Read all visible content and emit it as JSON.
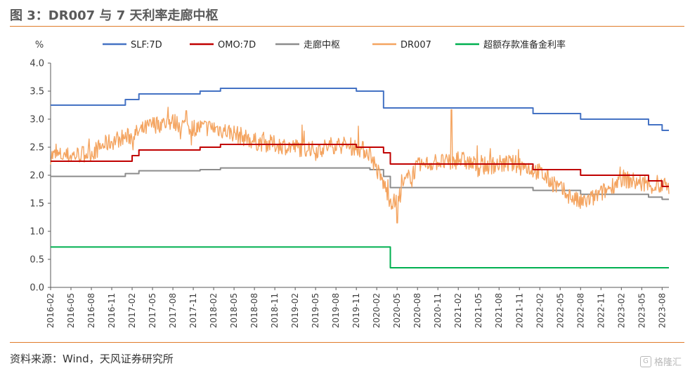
{
  "figure": {
    "title": "图 3：DR007 与 7 天利率走廊中枢",
    "source": "资料来源：Wind，天风证券研究所",
    "watermark": "格隆汇"
  },
  "chart_data": {
    "type": "line",
    "y_unit": "%",
    "ylim": [
      0,
      4
    ],
    "yticks": [
      "0.0",
      "0.5",
      "1.0",
      "1.5",
      "2.0",
      "2.5",
      "3.0",
      "3.5",
      "4.0"
    ],
    "x_range": [
      "2016-02",
      "2023-09"
    ],
    "xticks": [
      "2016-02",
      "2016-05",
      "2016-08",
      "2016-11",
      "2017-02",
      "2017-05",
      "2017-08",
      "2017-11",
      "2018-02",
      "2018-05",
      "2018-08",
      "2018-11",
      "2019-02",
      "2019-05",
      "2019-08",
      "2019-11",
      "2020-02",
      "2020-05",
      "2020-08",
      "2020-11",
      "2021-02",
      "2021-05",
      "2021-08",
      "2021-11",
      "2022-02",
      "2022-05",
      "2022-08",
      "2022-11",
      "2023-02",
      "2023-05",
      "2023-08"
    ],
    "legend_position": "top",
    "grid": false,
    "series": [
      {
        "name": "SLF:7D",
        "color": "#4472c4",
        "step": true,
        "points": [
          [
            "2016-02",
            3.25
          ],
          [
            "2017-01",
            3.35
          ],
          [
            "2017-03",
            3.45
          ],
          [
            "2017-12",
            3.5
          ],
          [
            "2018-03",
            3.55
          ],
          [
            "2019-11",
            3.5
          ],
          [
            "2020-03",
            3.2
          ],
          [
            "2022-01",
            3.1
          ],
          [
            "2022-08",
            3.0
          ],
          [
            "2023-06",
            2.9
          ],
          [
            "2023-08",
            2.8
          ],
          [
            "2023-09",
            2.8
          ]
        ]
      },
      {
        "name": "OMO:7D",
        "color": "#c00000",
        "step": true,
        "points": [
          [
            "2016-02",
            2.25
          ],
          [
            "2017-02",
            2.35
          ],
          [
            "2017-03",
            2.45
          ],
          [
            "2017-12",
            2.5
          ],
          [
            "2018-03",
            2.55
          ],
          [
            "2019-11",
            2.5
          ],
          [
            "2020-03",
            2.4
          ],
          [
            "2020-04",
            2.2
          ],
          [
            "2022-01",
            2.1
          ],
          [
            "2022-08",
            2.0
          ],
          [
            "2023-06",
            1.9
          ],
          [
            "2023-08",
            1.8
          ],
          [
            "2023-09",
            1.8
          ]
        ]
      },
      {
        "name": "走廊中枢",
        "color": "#8c8c8c",
        "step": true,
        "points": [
          [
            "2016-02",
            1.98
          ],
          [
            "2017-01",
            2.03
          ],
          [
            "2017-03",
            2.08
          ],
          [
            "2017-12",
            2.1
          ],
          [
            "2018-03",
            2.13
          ],
          [
            "2020-01",
            2.1
          ],
          [
            "2020-03",
            1.98
          ],
          [
            "2020-04",
            1.78
          ],
          [
            "2022-01",
            1.73
          ],
          [
            "2022-08",
            1.66
          ],
          [
            "2023-06",
            1.61
          ],
          [
            "2023-08",
            1.57
          ],
          [
            "2023-09",
            1.57
          ]
        ]
      },
      {
        "name": "DR007",
        "color": "#f4a460",
        "step": false,
        "points": [
          [
            "2016-02",
            2.35
          ],
          [
            "2016-05",
            2.35
          ],
          [
            "2016-08",
            2.4
          ],
          [
            "2016-10",
            2.55
          ],
          [
            "2016-12",
            2.65
          ],
          [
            "2017-02",
            2.7
          ],
          [
            "2017-05",
            2.9
          ],
          [
            "2017-08",
            2.95
          ],
          [
            "2017-11",
            2.85
          ],
          [
            "2018-02",
            2.85
          ],
          [
            "2018-05",
            2.75
          ],
          [
            "2018-08",
            2.6
          ],
          [
            "2018-11",
            2.55
          ],
          [
            "2019-02",
            2.5
          ],
          [
            "2019-05",
            2.45
          ],
          [
            "2019-08",
            2.55
          ],
          [
            "2019-11",
            2.5
          ],
          [
            "2020-01",
            2.4
          ],
          [
            "2020-02",
            2.1
          ],
          [
            "2020-03",
            1.85
          ],
          [
            "2020-04",
            1.55
          ],
          [
            "2020-05",
            1.5
          ],
          [
            "2020-06",
            1.85
          ],
          [
            "2020-08",
            2.15
          ],
          [
            "2020-11",
            2.25
          ],
          [
            "2021-01",
            2.2
          ],
          [
            "2021-02",
            2.3
          ],
          [
            "2021-05",
            2.15
          ],
          [
            "2021-08",
            2.2
          ],
          [
            "2021-11",
            2.2
          ],
          [
            "2022-02",
            2.05
          ],
          [
            "2022-05",
            1.75
          ],
          [
            "2022-08",
            1.5
          ],
          [
            "2022-10",
            1.6
          ],
          [
            "2022-12",
            1.75
          ],
          [
            "2023-02",
            1.95
          ],
          [
            "2023-05",
            1.85
          ],
          [
            "2023-07",
            1.8
          ],
          [
            "2023-09",
            1.8
          ]
        ],
        "spikes": [
          [
            "2021-01",
            3.17
          ],
          [
            "2020-05",
            1.15
          ],
          [
            "2017-10",
            3.15
          ]
        ]
      },
      {
        "name": "超额存款准备金利率",
        "color": "#00b050",
        "step": true,
        "points": [
          [
            "2016-02",
            0.72
          ],
          [
            "2020-04",
            0.72
          ],
          [
            "2020-04",
            0.35
          ],
          [
            "2023-09",
            0.35
          ]
        ]
      }
    ]
  }
}
